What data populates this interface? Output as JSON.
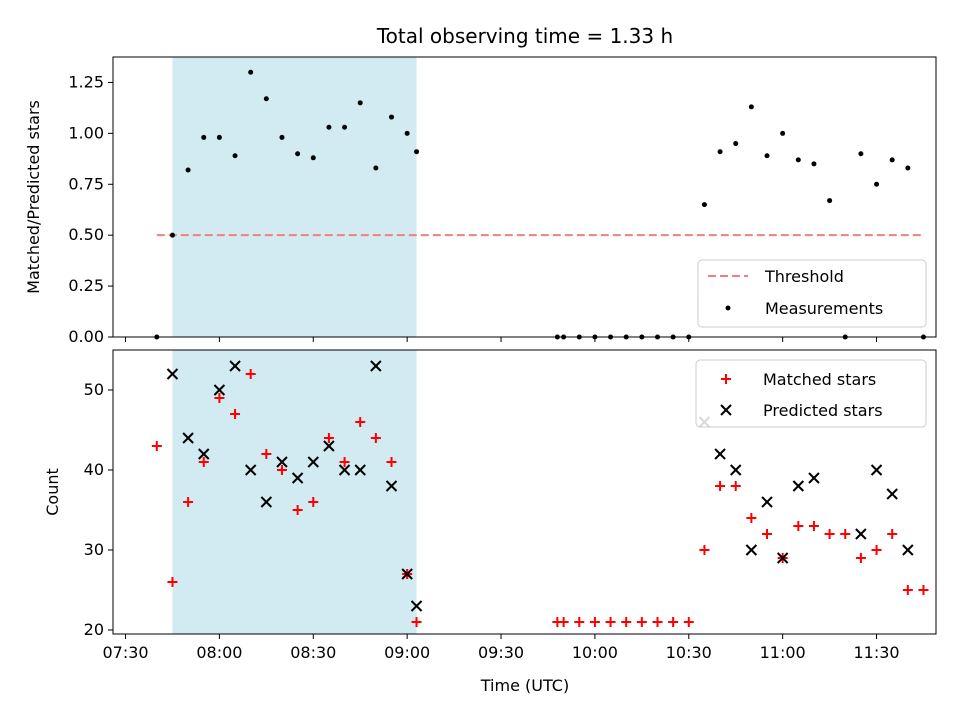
{
  "chart_data": [
    {
      "type": "scatter",
      "title": "Total observing time = 1.33 h",
      "xlabel": "",
      "ylabel": "Matched/Predicted stars",
      "xlim": [
        "07:26",
        "11:49"
      ],
      "ylim": [
        0,
        1.375
      ],
      "yticks": [
        "0.00",
        "0.25",
        "0.50",
        "0.75",
        "1.00",
        "1.25"
      ],
      "shaded_span": [
        "07:45",
        "09:03"
      ],
      "legend": {
        "position": "lower right",
        "entries": [
          "Threshold",
          "Measurements"
        ]
      },
      "series": [
        {
          "name": "Threshold",
          "style": "dashed-line",
          "color": "#f08080",
          "x": [
            "07:40",
            "11:45"
          ],
          "y": [
            0.5,
            0.5
          ]
        },
        {
          "name": "Measurements",
          "style": "dot",
          "color": "#000000",
          "x": [
            "07:40",
            "07:45",
            "07:50",
            "07:55",
            "08:00",
            "08:05",
            "08:10",
            "08:15",
            "08:20",
            "08:25",
            "08:30",
            "08:35",
            "08:40",
            "08:45",
            "08:50",
            "08:55",
            "09:00",
            "09:03",
            "09:48",
            "09:50",
            "09:55",
            "10:00",
            "10:05",
            "10:10",
            "10:15",
            "10:20",
            "10:25",
            "10:30",
            "10:35",
            "10:40",
            "10:45",
            "10:50",
            "10:55",
            "11:00",
            "11:05",
            "11:10",
            "11:15",
            "11:20",
            "11:25",
            "11:30",
            "11:35",
            "11:40",
            "11:45"
          ],
          "y": [
            0.0,
            0.5,
            0.82,
            0.98,
            0.98,
            0.89,
            1.3,
            1.17,
            0.98,
            0.9,
            0.88,
            1.03,
            1.03,
            1.15,
            0.83,
            1.08,
            1.0,
            0.91,
            0.0,
            0.0,
            0.0,
            0.0,
            0.0,
            0.0,
            0.0,
            0.0,
            0.0,
            0.0,
            0.65,
            0.91,
            0.95,
            1.13,
            0.89,
            1.0,
            0.87,
            0.85,
            0.67,
            0.0,
            0.9,
            0.75,
            0.87,
            0.83,
            0.0
          ]
        }
      ]
    },
    {
      "type": "scatter",
      "title": "",
      "xlabel": "Time (UTC)",
      "ylabel": "Count",
      "xlim": [
        "07:26",
        "11:49"
      ],
      "ylim": [
        19.5,
        55
      ],
      "yticks": [
        "20",
        "30",
        "40",
        "50"
      ],
      "xticks": [
        "07:30",
        "08:00",
        "08:30",
        "09:00",
        "09:30",
        "10:00",
        "10:30",
        "11:00",
        "11:30"
      ],
      "shaded_span": [
        "07:45",
        "09:03"
      ],
      "legend": {
        "position": "upper right",
        "entries": [
          "Matched stars",
          "Predicted stars"
        ]
      },
      "series": [
        {
          "name": "Matched stars",
          "style": "plus",
          "color": "#ff0000",
          "x": [
            "07:40",
            "07:45",
            "07:50",
            "07:55",
            "08:00",
            "08:05",
            "08:10",
            "08:15",
            "08:20",
            "08:25",
            "08:30",
            "08:35",
            "08:40",
            "08:45",
            "08:50",
            "08:55",
            "09:00",
            "09:03",
            "09:48",
            "09:50",
            "09:55",
            "10:00",
            "10:05",
            "10:10",
            "10:15",
            "10:20",
            "10:25",
            "10:30",
            "10:35",
            "10:40",
            "10:45",
            "10:50",
            "10:55",
            "11:00",
            "11:05",
            "11:10",
            "11:15",
            "11:20",
            "11:25",
            "11:30",
            "11:35",
            "11:40",
            "11:45"
          ],
          "y": [
            43,
            26,
            36,
            41,
            49,
            47,
            52,
            42,
            40,
            35,
            36,
            44,
            41,
            46,
            44,
            41,
            27,
            21,
            21,
            21,
            21,
            21,
            21,
            21,
            21,
            21,
            21,
            21,
            30,
            38,
            38,
            34,
            32,
            29,
            33,
            33,
            32,
            32,
            29,
            30,
            32,
            25,
            25
          ]
        },
        {
          "name": "Predicted stars",
          "style": "x",
          "color": "#000000",
          "x": [
            "07:45",
            "07:50",
            "07:55",
            "08:00",
            "08:05",
            "08:10",
            "08:15",
            "08:20",
            "08:25",
            "08:30",
            "08:35",
            "08:40",
            "08:45",
            "08:50",
            "08:55",
            "09:00",
            "09:03",
            "10:35",
            "10:40",
            "10:45",
            "10:50",
            "10:55",
            "11:00",
            "11:05",
            "11:10",
            "11:25",
            "11:30",
            "11:35",
            "11:40"
          ],
          "y": [
            52,
            44,
            42,
            50,
            53,
            40,
            36,
            41,
            39,
            41,
            43,
            40,
            40,
            53,
            38,
            27,
            23,
            46,
            42,
            40,
            30,
            36,
            29,
            38,
            39,
            32,
            40,
            37,
            30
          ]
        }
      ]
    }
  ]
}
